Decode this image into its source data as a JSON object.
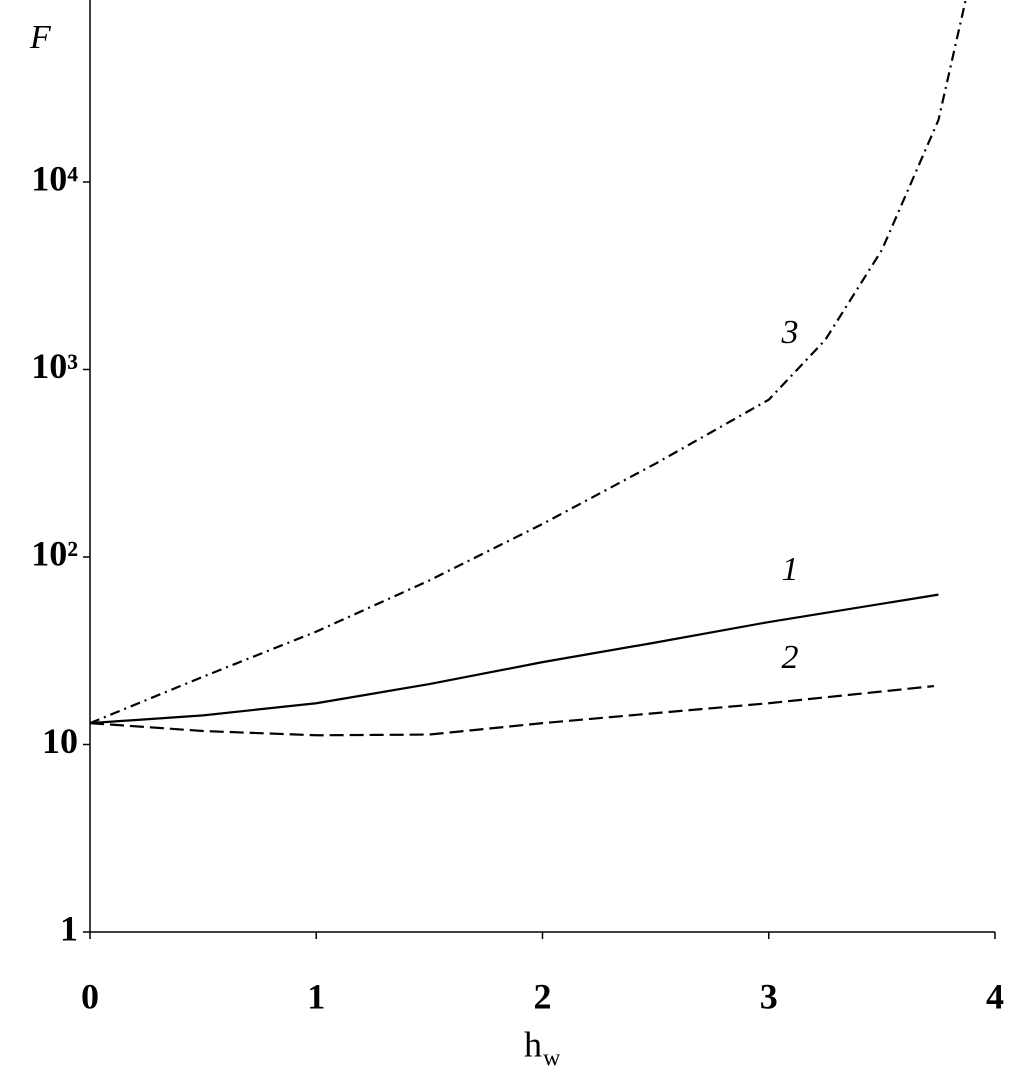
{
  "chart_data": {
    "type": "line",
    "ylabel": "F",
    "xlabel": {
      "text": "h",
      "subscript": "w"
    },
    "xlim": [
      0,
      4
    ],
    "xticks": [
      0,
      1,
      2,
      3,
      4
    ],
    "ylim": [
      1,
      100000
    ],
    "ylog": true,
    "yticks": [
      1,
      10,
      {
        "value": 100,
        "label": "10²"
      },
      {
        "value": 1000,
        "label": "10³"
      },
      {
        "value": 10000,
        "label": "10⁴"
      }
    ],
    "grid": false,
    "series": [
      {
        "name": "1",
        "color": "#000000",
        "dash": "solid",
        "x": [
          0,
          0.5,
          1,
          1.5,
          2,
          2.5,
          3,
          3.75
        ],
        "values": [
          13,
          14.3,
          16.6,
          21,
          27.5,
          35,
          45,
          63
        ]
      },
      {
        "name": "2",
        "color": "#000000",
        "dash": "dashed",
        "x": [
          0,
          0.5,
          1,
          1.5,
          2,
          2.5,
          3,
          3.73
        ],
        "values": [
          13,
          11.8,
          11.2,
          11.3,
          13,
          14.7,
          16.6,
          20.5
        ]
      },
      {
        "name": "3",
        "color": "#000000",
        "dash": "dashdot",
        "x": [
          0,
          0.5,
          1,
          1.5,
          2,
          2.5,
          3,
          3.25,
          3.5,
          3.75,
          3.87
        ],
        "values": [
          13,
          23,
          40,
          75,
          150,
          315,
          690,
          1440,
          4340,
          21400,
          93000
        ]
      }
    ]
  }
}
